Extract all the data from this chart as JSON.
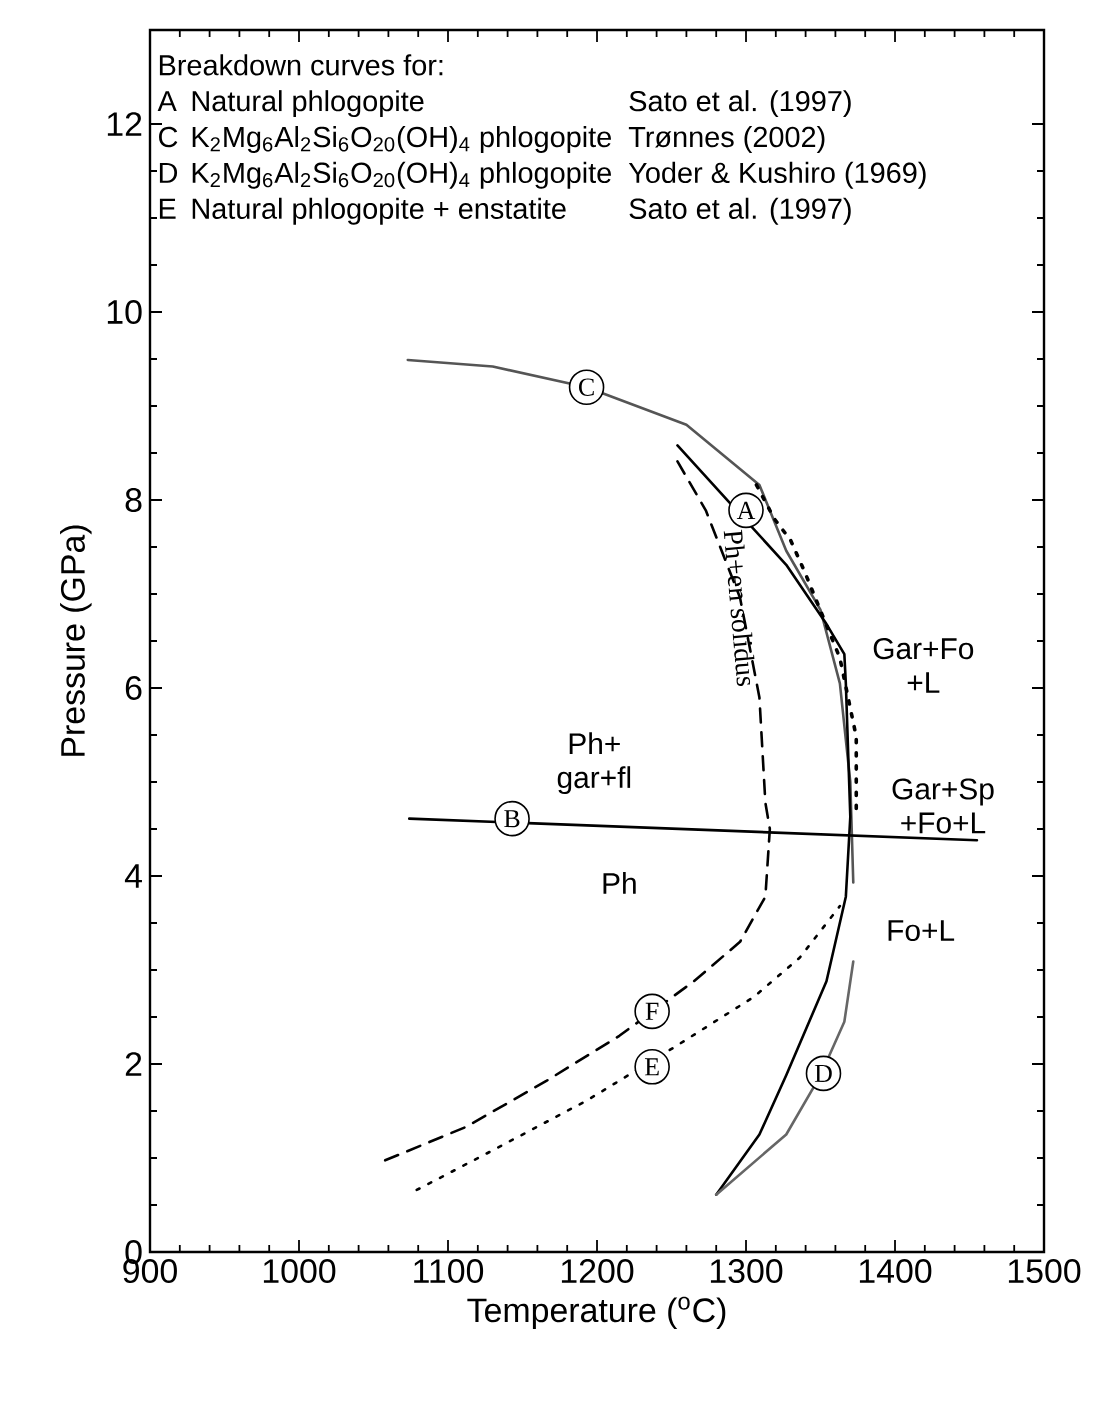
{
  "chart_data": {
    "type": "line",
    "xlabel": "Temperature ($^{o}$C)",
    "ylabel": "Pressure (GPa)",
    "xlim": [
      900,
      1500
    ],
    "ylim": [
      0,
      13
    ],
    "xticks": [
      900,
      1000,
      1100,
      1200,
      1300,
      1400,
      1500
    ],
    "yticks": [
      0,
      2,
      4,
      6,
      8,
      10,
      12
    ],
    "grid": false,
    "marker": "none",
    "series": [
      {
        "color": "#555555",
        "line_style": "solid",
        "x": [
          1073,
          1130,
          1193,
          1260,
          1309,
          1327,
          1350,
          1363,
          1370,
          1372
        ],
        "values": [
          9.49,
          9.42,
          9.2,
          8.8,
          8.16,
          7.46,
          6.83,
          6.05,
          5.0,
          3.93
        ]
      },
      {
        "color": "#000000",
        "line_style": "solid",
        "x": [
          1254,
          1327,
          1354,
          1366,
          1367,
          1370,
          1367,
          1354,
          1327,
          1309,
          1280
        ],
        "values": [
          8.58,
          7.31,
          6.68,
          6.36,
          6.05,
          4.63,
          3.78,
          2.88,
          1.88,
          1.25,
          0.61
        ]
      },
      {
        "color": "#000000",
        "line_style": "dotted",
        "x": [
          1307,
          1319,
          1330,
          1339,
          1363,
          1374,
          1374
        ],
        "values": [
          8.16,
          7.8,
          7.57,
          7.25,
          6.32,
          5.48,
          4.63
        ]
      },
      {
        "color": "#000000",
        "line_style": "solid",
        "x": [
          1074,
          1455
        ],
        "values": [
          4.61,
          4.38
        ]
      },
      {
        "color": "#666666",
        "line_style": "solid",
        "x": [
          1280,
          1327,
          1350,
          1366,
          1372
        ],
        "values": [
          0.61,
          1.25,
          1.88,
          2.45,
          3.09
        ]
      },
      {
        "color": "#000000",
        "line_style": "dashed",
        "x": [
          1254,
          1273,
          1296,
          1309,
          1313,
          1316,
          1313,
          1296,
          1265,
          1215,
          1166,
          1112,
          1057
        ],
        "values": [
          8.41,
          7.89,
          6.96,
          5.9,
          4.78,
          4.5,
          3.78,
          3.3,
          2.88,
          2.3,
          1.82,
          1.33,
          0.97
        ]
      },
      {
        "color": "#000000",
        "line_style": "dotted",
        "x": [
          1079,
          1125,
          1193,
          1252,
          1305,
          1336,
          1363
        ],
        "values": [
          0.66,
          1.04,
          1.61,
          2.18,
          2.71,
          3.13,
          3.68
        ]
      }
    ],
    "annotations": [
      "Breakdown curves for:",
      "A",
      "Natural phlogopite",
      "Sato et al. (1997)",
      "C",
      "K$_{2}$Mg$_{6}$Al$_{2}$Si$_{6}$O$_{20}$(OH)$_{4}$ phlogopite",
      "Trønnes (2002)",
      "D",
      "K$_{2}$Mg$_{6}$Al$_{2}$Si$_{6}$O$_{20}$(OH)$_{4}$ phlogopite",
      "Yoder & Kushiro (1969)",
      "E",
      "Natural phlogopite + enstatite",
      "Sato et al. (1997)",
      {
        "text": "A",
        "x": 1300,
        "y": 7.89
      },
      {
        "text": "B",
        "x": 1143,
        "y": 4.61
      },
      {
        "text": "C",
        "x": 1193,
        "y": 9.2
      },
      {
        "text": "D",
        "x": 1352,
        "y": 1.9
      },
      {
        "text": "E",
        "x": 1237,
        "y": 1.97
      },
      {
        "text": "F",
        "x": 1237,
        "y": 2.56
      },
      {
        "text": "Ph+en solidus",
        "x": 1296,
        "y": 6.85
      },
      "Gar+Fo +L",
      "Gar+Sp +Fo+L",
      "Fo+L",
      "Ph",
      "Ph+ gar+fl"
    ]
  }
}
